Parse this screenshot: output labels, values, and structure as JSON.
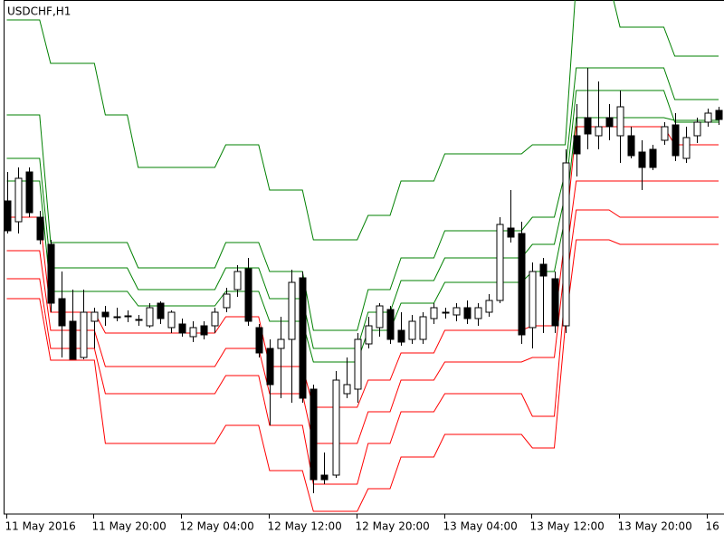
{
  "chart_data": {
    "type": "candlestick",
    "title": "USDCHF,H1",
    "categories": [
      "11 May 2016",
      null,
      null,
      null,
      null,
      null,
      null,
      null,
      "11 May 20:00",
      null,
      null,
      null,
      null,
      null,
      null,
      null,
      "12 May 04:00",
      null,
      null,
      null,
      null,
      null,
      null,
      null,
      "12 May 12:00",
      null,
      null,
      null,
      null,
      null,
      null,
      null,
      "12 May 20:00",
      null,
      null,
      null,
      null,
      null,
      null,
      null,
      "13 May 04:00",
      null,
      null,
      null,
      null,
      null,
      null,
      null,
      "13 May 12:00",
      null,
      null,
      null,
      null,
      null,
      null,
      null,
      "13 May 20:00",
      null,
      null,
      null,
      null,
      null,
      null,
      null,
      "16",
      null
    ],
    "open": [
      346,
      323,
      378,
      328,
      298,
      238,
      213,
      173,
      213,
      223,
      218,
      219,
      215,
      208,
      233,
      206,
      210,
      196,
      208,
      208,
      228,
      248,
      271,
      206,
      183,
      183,
      193,
      261,
      138,
      43,
      43,
      133,
      138,
      188,
      206,
      226,
      203,
      193,
      193,
      216,
      223,
      220,
      228,
      216,
      223,
      236,
      316,
      310,
      206,
      276,
      260,
      208,
      418,
      438,
      418,
      438,
      418,
      418,
      400,
      403,
      413,
      430,
      393,
      418,
      433,
      446
    ],
    "high": [
      378,
      383,
      383,
      335,
      303,
      268,
      248,
      248,
      228,
      230,
      228,
      225,
      220,
      233,
      235,
      225,
      216,
      213,
      213,
      228,
      250,
      275,
      283,
      210,
      193,
      218,
      270,
      268,
      143,
      68,
      158,
      173,
      200,
      218,
      233,
      230,
      223,
      220,
      223,
      233,
      228,
      233,
      236,
      233,
      243,
      328,
      358,
      323,
      278,
      283,
      268,
      403,
      453,
      493,
      478,
      453,
      468,
      428,
      413,
      408,
      433,
      443,
      428,
      438,
      448,
      450
    ],
    "low": [
      310,
      310,
      328,
      298,
      223,
      173,
      171,
      171,
      183,
      208,
      213,
      212,
      208,
      206,
      210,
      200,
      196,
      190,
      193,
      200,
      223,
      240,
      208,
      173,
      98,
      128,
      123,
      123,
      23,
      33,
      40,
      128,
      123,
      183,
      196,
      188,
      186,
      188,
      188,
      210,
      216,
      213,
      210,
      208,
      218,
      233,
      300,
      188,
      183,
      200,
      200,
      200,
      373,
      403,
      403,
      413,
      388,
      393,
      358,
      380,
      408,
      390,
      388,
      410,
      428,
      430
    ],
    "close": [
      313,
      371,
      333,
      303,
      233,
      208,
      171,
      223,
      223,
      218,
      217,
      218,
      215,
      228,
      216,
      223,
      200,
      206,
      198,
      223,
      243,
      268,
      213,
      178,
      143,
      193,
      256,
      128,
      38,
      38,
      148,
      143,
      193,
      208,
      230,
      193,
      190,
      213,
      218,
      228,
      222,
      228,
      216,
      228,
      236,
      320,
      306,
      198,
      268,
      263,
      208,
      388,
      398,
      420,
      428,
      428,
      450,
      396,
      383,
      383,
      428,
      396,
      416,
      433,
      443,
      436
    ],
    "series": [
      {
        "color": "#008000",
        "values": [
          546,
          546,
          546,
          546,
          498,
          498,
          498,
          498,
          498,
          441,
          441,
          441,
          383,
          383,
          383,
          383,
          383,
          383,
          383,
          383,
          408,
          408,
          408,
          408,
          358,
          358,
          358,
          358,
          303,
          303,
          303,
          303,
          303,
          330,
          330,
          330,
          368,
          368,
          368,
          368,
          398,
          398,
          398,
          398,
          398,
          398,
          398,
          398,
          408,
          408,
          408,
          408,
          588,
          588,
          588,
          588,
          538,
          538,
          538,
          538,
          538,
          506,
          506,
          506,
          506,
          506
        ]
      },
      {
        "color": "#008000",
        "values": [
          441,
          441,
          441,
          441,
          300,
          300,
          300,
          300,
          300,
          300,
          300,
          300,
          272,
          272,
          272,
          272,
          272,
          272,
          272,
          272,
          300,
          300,
          300,
          300,
          268,
          268,
          268,
          268,
          203,
          203,
          203,
          203,
          203,
          248,
          248,
          248,
          283,
          283,
          283,
          283,
          313,
          313,
          313,
          313,
          313,
          313,
          313,
          313,
          328,
          328,
          328,
          378,
          493,
          493,
          493,
          493,
          493,
          493,
          493,
          493,
          493,
          458,
          458,
          458,
          458,
          458
        ]
      },
      {
        "color": "#008000",
        "values": [
          393,
          393,
          393,
          393,
          272,
          272,
          272,
          272,
          272,
          272,
          272,
          272,
          248,
          248,
          248,
          248,
          248,
          248,
          248,
          248,
          272,
          272,
          272,
          272,
          238,
          238,
          238,
          238,
          183,
          183,
          183,
          183,
          183,
          223,
          223,
          223,
          258,
          258,
          258,
          258,
          283,
          283,
          283,
          283,
          283,
          283,
          283,
          283,
          298,
          298,
          298,
          353,
          468,
          468,
          468,
          468,
          468,
          468,
          468,
          468,
          468,
          433,
          433,
          433,
          433,
          433
        ]
      },
      {
        "color": "#008000",
        "values": [
          368,
          368,
          368,
          368,
          246,
          246,
          246,
          246,
          246,
          246,
          246,
          246,
          230,
          230,
          230,
          230,
          230,
          230,
          230,
          230,
          246,
          246,
          246,
          246,
          213,
          213,
          213,
          213,
          168,
          168,
          168,
          168,
          168,
          203,
          203,
          203,
          233,
          233,
          233,
          233,
          256,
          256,
          256,
          256,
          256,
          256,
          256,
          256,
          268,
          268,
          268,
          328,
          438,
          438,
          438,
          438,
          438,
          438,
          438,
          438,
          438,
          435,
          435,
          435,
          435,
          435
        ]
      },
      {
        "color": "#ff0000",
        "values": [
          328,
          328,
          328,
          328,
          223,
          223,
          223,
          223,
          223,
          200,
          200,
          200,
          200,
          200,
          200,
          200,
          200,
          200,
          200,
          200,
          218,
          218,
          218,
          218,
          163,
          163,
          163,
          163,
          118,
          118,
          118,
          118,
          118,
          148,
          148,
          148,
          178,
          178,
          178,
          178,
          203,
          203,
          203,
          203,
          203,
          203,
          203,
          203,
          208,
          208,
          208,
          308,
          428,
          428,
          428,
          428,
          428,
          428,
          428,
          428,
          428,
          408,
          408,
          408,
          408,
          408
        ]
      },
      {
        "color": "#ff0000",
        "values": [
          291,
          291,
          291,
          291,
          203,
          203,
          203,
          203,
          203,
          163,
          163,
          163,
          163,
          163,
          163,
          163,
          163,
          163,
          163,
          163,
          183,
          183,
          183,
          183,
          133,
          133,
          133,
          133,
          78,
          78,
          78,
          78,
          78,
          113,
          113,
          113,
          148,
          148,
          148,
          148,
          168,
          168,
          168,
          168,
          168,
          168,
          168,
          168,
          173,
          173,
          173,
          278,
          368,
          368,
          368,
          368,
          368,
          368,
          368,
          368,
          368,
          368,
          368,
          368,
          368,
          368
        ]
      },
      {
        "color": "#ff0000",
        "values": [
          260,
          260,
          260,
          260,
          183,
          183,
          183,
          183,
          183,
          133,
          133,
          133,
          133,
          133,
          133,
          133,
          133,
          133,
          133,
          133,
          153,
          153,
          153,
          153,
          98,
          98,
          98,
          98,
          33,
          33,
          33,
          33,
          33,
          78,
          78,
          78,
          113,
          113,
          113,
          113,
          133,
          133,
          133,
          133,
          133,
          133,
          133,
          133,
          108,
          108,
          108,
          248,
          336,
          336,
          336,
          336,
          328,
          328,
          328,
          328,
          328,
          328,
          328,
          328,
          328,
          328
        ]
      },
      {
        "color": "#ff0000",
        "values": [
          238,
          238,
          238,
          238,
          170,
          170,
          170,
          170,
          170,
          78,
          78,
          78,
          78,
          78,
          78,
          78,
          78,
          78,
          78,
          78,
          98,
          98,
          98,
          98,
          48,
          48,
          48,
          48,
          3,
          3,
          3,
          3,
          3,
          28,
          28,
          28,
          63,
          63,
          63,
          63,
          88,
          88,
          88,
          88,
          88,
          88,
          88,
          88,
          73,
          73,
          73,
          208,
          303,
          303,
          303,
          303,
          298,
          298,
          298,
          298,
          298,
          298,
          298,
          298,
          298,
          298
        ]
      }
    ],
    "up_color": "#ffffff",
    "down_color": "#000000",
    "ylim": [
      0,
      568
    ]
  }
}
